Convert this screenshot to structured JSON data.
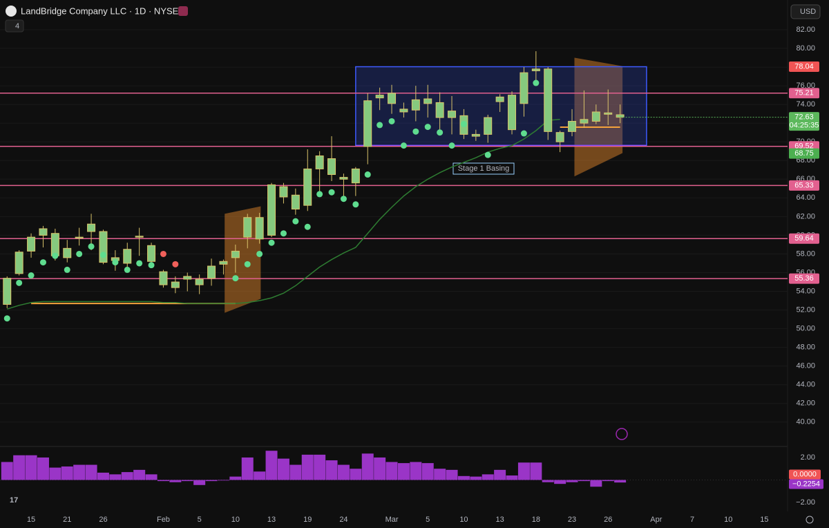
{
  "header": {
    "title": "LandBridge Company LLC · 1D · NYSE",
    "indicators": "4",
    "currency": "USD"
  },
  "chart_data": [
    {
      "type": "candlestick",
      "xlim": [
        -0.59,
        64.93
      ],
      "ylim": [
        37.47,
        85.18
      ],
      "xticks": [
        {
          "value": 2,
          "label": "15"
        },
        {
          "value": 5,
          "label": "21"
        },
        {
          "value": 8,
          "label": "26"
        },
        {
          "value": 13,
          "label": "Feb"
        },
        {
          "value": 16,
          "label": "5"
        },
        {
          "value": 19,
          "label": "10"
        },
        {
          "value": 22,
          "label": "13"
        },
        {
          "value": 25,
          "label": "19"
        },
        {
          "value": 28,
          "label": "24"
        },
        {
          "value": 32,
          "label": "Mar"
        },
        {
          "value": 35,
          "label": "5"
        },
        {
          "value": 38,
          "label": "10"
        },
        {
          "value": 41,
          "label": "13"
        },
        {
          "value": 44,
          "label": "18"
        },
        {
          "value": 47,
          "label": "23"
        },
        {
          "value": 50,
          "label": "26"
        },
        {
          "value": 54,
          "label": "Apr"
        },
        {
          "value": 57,
          "label": "7"
        },
        {
          "value": 60,
          "label": "10"
        },
        {
          "value": 63,
          "label": "15"
        }
      ],
      "yticks": [
        {
          "value": 82,
          "label": "82.00"
        },
        {
          "value": 80,
          "label": "80.00"
        },
        {
          "value": 78,
          "label": "78.00"
        },
        {
          "value": 76,
          "label": "76.00"
        },
        {
          "value": 74,
          "label": "74.00"
        },
        {
          "value": 72,
          "label": "72.00"
        },
        {
          "value": 70,
          "label": "70.00"
        },
        {
          "value": 68,
          "label": "68.00"
        },
        {
          "value": 66,
          "label": "66.00"
        },
        {
          "value": 64,
          "label": "64.00"
        },
        {
          "value": 62,
          "label": "62.00"
        },
        {
          "value": 60,
          "label": "60.00"
        },
        {
          "value": 58,
          "label": "58.00"
        },
        {
          "value": 56,
          "label": "56.00"
        },
        {
          "value": 54,
          "label": "54.00"
        },
        {
          "value": 52,
          "label": "52.00"
        },
        {
          "value": 50,
          "label": "50.00"
        },
        {
          "value": 48,
          "label": "48.00"
        },
        {
          "value": 46,
          "label": "46.00"
        },
        {
          "value": 44,
          "label": "44.00"
        },
        {
          "value": 42,
          "label": "42.00"
        },
        {
          "value": 40,
          "label": "40.00"
        }
      ],
      "open": [
        52.6,
        55.9,
        58.3,
        60.0,
        57.8,
        57.6,
        59.7,
        60.4,
        57.1,
        57.6,
        57.0,
        59.8,
        57.2,
        56.1,
        55.0,
        55.3,
        55.3,
        55.4,
        56.9,
        57.6,
        59.8,
        59.6,
        60.0,
        64.1,
        62.8,
        63.2,
        67.1,
        66.5,
        66.0,
        65.6,
        69.5,
        74.7,
        75.2,
        73.2,
        73.4,
        74.1,
        72.6,
        72.6,
        70.8,
        70.6,
        70.8,
        74.3,
        71.3,
        74.1,
        77.6,
        77.8,
        71.0,
        71.1,
        72.0,
        72.2,
        72.95,
        72.9
      ],
      "high": [
        55.6,
        58.4,
        60.2,
        61.0,
        60.7,
        59.5,
        60.8,
        62.3,
        60.6,
        58.4,
        59.2,
        60.8,
        59.2,
        56.3,
        55.6,
        56.0,
        55.8,
        57.5,
        57.4,
        59.0,
        62.3,
        62.4,
        65.6,
        65.6,
        65.0,
        69.2,
        69.0,
        70.6,
        66.6,
        67.3,
        75.2,
        75.8,
        76.1,
        74.2,
        76.0,
        76.1,
        75.3,
        74.9,
        73.5,
        71.3,
        72.9,
        75.1,
        75.4,
        78.0,
        79.7,
        78.0,
        71.2,
        73.5,
        75.5,
        74.0,
        75.6,
        74.0
      ],
      "low": [
        52.2,
        55.7,
        57.6,
        58.7,
        57.3,
        57.1,
        58.9,
        58.4,
        56.9,
        56.2,
        56.4,
        57.8,
        56.6,
        54.4,
        53.8,
        54.0,
        53.7,
        54.6,
        55.8,
        56.0,
        58.6,
        59.1,
        59.8,
        63.4,
        62.2,
        62.6,
        64.5,
        65.8,
        64.2,
        64.2,
        67.6,
        73.4,
        73.0,
        72.6,
        72.2,
        72.6,
        71.2,
        70.8,
        70.3,
        70.1,
        69.9,
        73.2,
        70.8,
        72.7,
        76.6,
        70.2,
        68.9,
        70.6,
        71.5,
        71.9,
        71.8,
        72.0
      ],
      "close": [
        55.4,
        58.2,
        59.8,
        60.7,
        60.2,
        58.6,
        59.8,
        61.2,
        60.4,
        57.3,
        58.5,
        59.9,
        58.9,
        54.7,
        54.4,
        55.6,
        54.7,
        56.7,
        57.2,
        58.3,
        61.9,
        61.9,
        65.4,
        65.2,
        64.3,
        67.1,
        68.5,
        68.2,
        66.2,
        67.1,
        74.4,
        75.0,
        74.1,
        73.5,
        74.5,
        74.6,
        74.2,
        73.3,
        72.8,
        70.8,
        72.6,
        74.8,
        75.0,
        77.4,
        77.8,
        71.1,
        70.0,
        72.2,
        72.4,
        73.2,
        73.1,
        72.63
      ],
      "candle_colors": {
        "body": "#86c97e",
        "border": "#d9c36a"
      },
      "moving_average": {
        "color": "#2e7d32",
        "values": [
          52.1,
          52.5,
          52.8,
          52.9,
          52.9,
          52.9,
          52.9,
          52.9,
          52.9,
          52.9,
          52.9,
          52.9,
          52.9,
          52.8,
          52.8,
          52.7,
          52.7,
          52.7,
          52.7,
          52.7,
          52.8,
          53.0,
          53.3,
          53.8,
          54.6,
          55.6,
          56.6,
          57.4,
          58.1,
          58.7,
          60.2,
          61.7,
          63.0,
          64.2,
          65.2,
          66.0,
          66.7,
          67.3,
          67.8,
          68.3,
          68.9,
          69.3,
          69.6,
          70.3,
          71.2,
          72.3,
          72.4,
          null,
          null,
          null,
          null,
          null
        ]
      },
      "dots_up": {
        "color": "#5fdc8f",
        "values": [
          51.1,
          54.9,
          55.7,
          57.1,
          57.8,
          56.3,
          58.0,
          58.8,
          57.9,
          57.1,
          56.3,
          57.0,
          56.8,
          null,
          null,
          null,
          null,
          null,
          null,
          55.4,
          56.9,
          58.0,
          59.2,
          60.2,
          61.5,
          60.9,
          64.4,
          64.6,
          63.9,
          63.3,
          66.5,
          71.8,
          72.2,
          69.6,
          71.1,
          71.6,
          71.0,
          69.6,
          71.9,
          null,
          68.6,
          null,
          null,
          70.9,
          76.3,
          null,
          null,
          null,
          null,
          null,
          null,
          null
        ]
      },
      "dots_down": {
        "color": "#f0605a",
        "values": [
          null,
          null,
          null,
          null,
          null,
          null,
          null,
          null,
          null,
          null,
          null,
          null,
          null,
          58.0,
          56.9,
          null,
          null,
          null,
          null,
          null,
          null,
          null,
          null,
          null,
          null,
          null,
          null,
          null,
          null,
          null,
          null,
          null,
          null,
          null,
          null,
          null,
          null,
          null,
          null,
          null,
          null,
          null,
          null,
          null,
          null,
          null,
          null,
          null,
          null,
          null,
          null,
          null
        ]
      },
      "levels": [
        {
          "value": 75.21,
          "color": "#e2608f"
        },
        {
          "value": 69.52,
          "color": "#e2608f"
        },
        {
          "value": 65.33,
          "color": "#e2608f"
        },
        {
          "value": 59.64,
          "color": "#e2608f"
        },
        {
          "value": 55.36,
          "color": "#e2608f"
        }
      ],
      "box": {
        "x": [
          29,
          53.2
        ],
        "top": 78.04,
        "bottom": 69.6,
        "color": "#3d5afe",
        "top_color": "#f05454"
      },
      "zones": [
        {
          "x": [
            18.1,
            21.1
          ],
          "top": [
            62.3,
            63.1
          ],
          "bottom": [
            51.7,
            53.2
          ]
        },
        {
          "x": [
            47.2,
            51.2
          ],
          "top": [
            79.0,
            78.1
          ],
          "bottom": [
            66.3,
            68.8
          ]
        }
      ],
      "orange_lines": [
        {
          "x": [
            2,
            19
          ],
          "value": 52.7
        },
        {
          "x": [
            46,
            51
          ],
          "value": 71.57
        }
      ],
      "badges": [
        {
          "value": 68.75,
          "color": "#4caf50"
        }
      ],
      "last_color": "#5cb85c",
      "countdown": "04:25:35",
      "annotation": "Stage 1 Basing"
    },
    {
      "type": "histogram",
      "color": "#9a35c7",
      "ylim": [
        -2.8,
        2.86
      ],
      "yticks": [
        {
          "value": 2,
          "label": "2.00"
        },
        {
          "value": -2,
          "label": "−2.00"
        }
      ],
      "values": [
        1.6,
        2.2,
        2.2,
        2.0,
        1.1,
        1.2,
        1.35,
        1.35,
        0.65,
        0.5,
        0.7,
        0.9,
        0.5,
        -0.1,
        -0.2,
        -0.1,
        -0.45,
        -0.1,
        -0.05,
        0.3,
        2.0,
        0.75,
        2.6,
        1.9,
        1.35,
        2.25,
        2.25,
        1.75,
        1.35,
        1.0,
        2.35,
        2.0,
        1.6,
        1.5,
        1.6,
        1.5,
        1.0,
        0.9,
        0.35,
        0.3,
        0.5,
        0.9,
        0.4,
        1.55,
        1.55,
        -0.2,
        -0.35,
        -0.2,
        -0.1,
        -0.6,
        -0.1,
        -0.2254
      ],
      "zero_label": {
        "value": 0,
        "label": "0.0000"
      },
      "last_label": "−0.2254"
    }
  ]
}
